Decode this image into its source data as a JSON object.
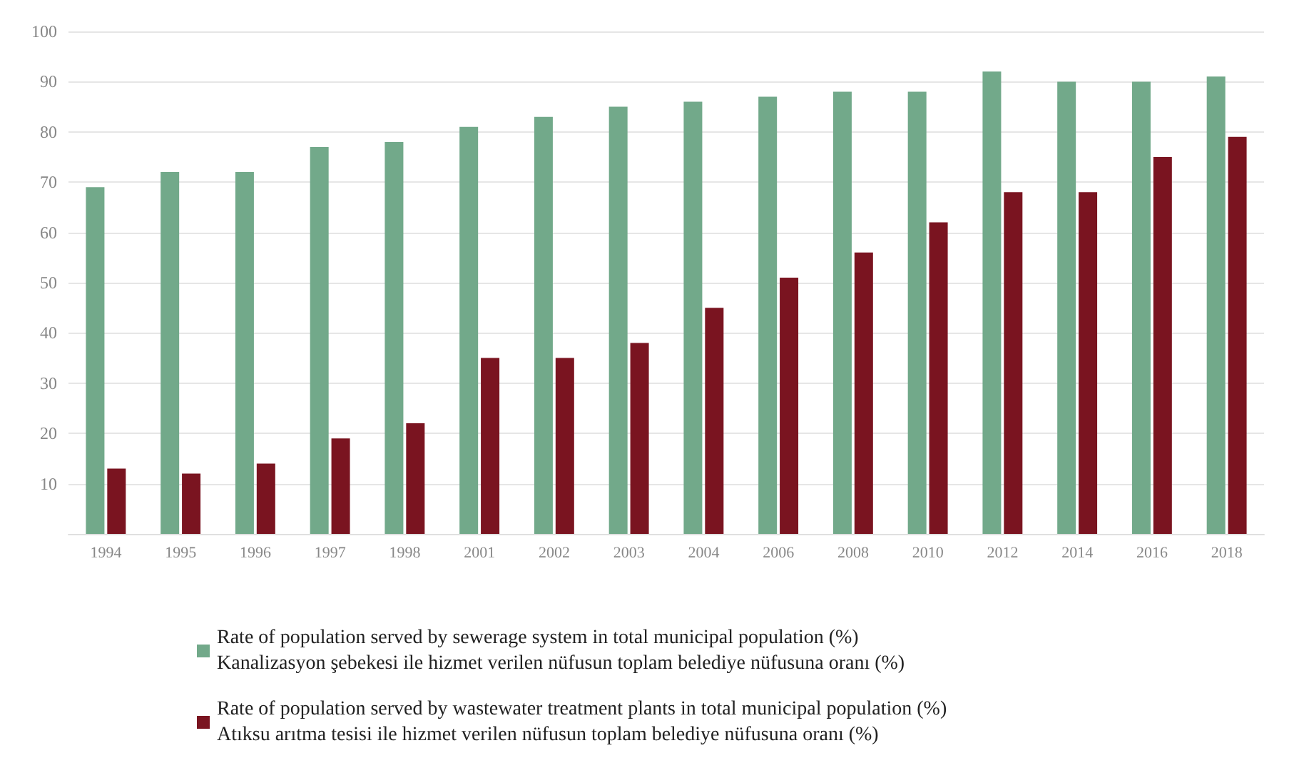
{
  "chart_data": {
    "type": "bar",
    "categories": [
      "1994",
      "1995",
      "1996",
      "1997",
      "1998",
      "2001",
      "2002",
      "2003",
      "2004",
      "2006",
      "2008",
      "2010",
      "2012",
      "2014",
      "2016",
      "2018"
    ],
    "series": [
      {
        "name": "Rate of population served by sewerage system in total municipal population (%)\nKanalizasyon şebekesi ile hizmet verilen nüfusun toplam belediye nüfusuna oranı (%)",
        "color": "#72a98a",
        "values": [
          69,
          72,
          72,
          77,
          78,
          81,
          83,
          85,
          86,
          87,
          88,
          88,
          92,
          90,
          90,
          91
        ]
      },
      {
        "name": "Rate of population served by wastewater treatment plants in total municipal population (%)\nAtıksu arıtma tesisi ile hizmet verilen nüfusun toplam belediye nüfusuna oranı (%)",
        "color": "#7a1420",
        "values": [
          13,
          12,
          14,
          19,
          22,
          35,
          35,
          38,
          45,
          51,
          56,
          62,
          68,
          68,
          75,
          79
        ]
      }
    ],
    "ylim": [
      0,
      100
    ],
    "yticks": [
      10,
      20,
      30,
      40,
      50,
      60,
      70,
      80,
      90,
      100
    ],
    "grid": "y",
    "legend": "bottom"
  }
}
